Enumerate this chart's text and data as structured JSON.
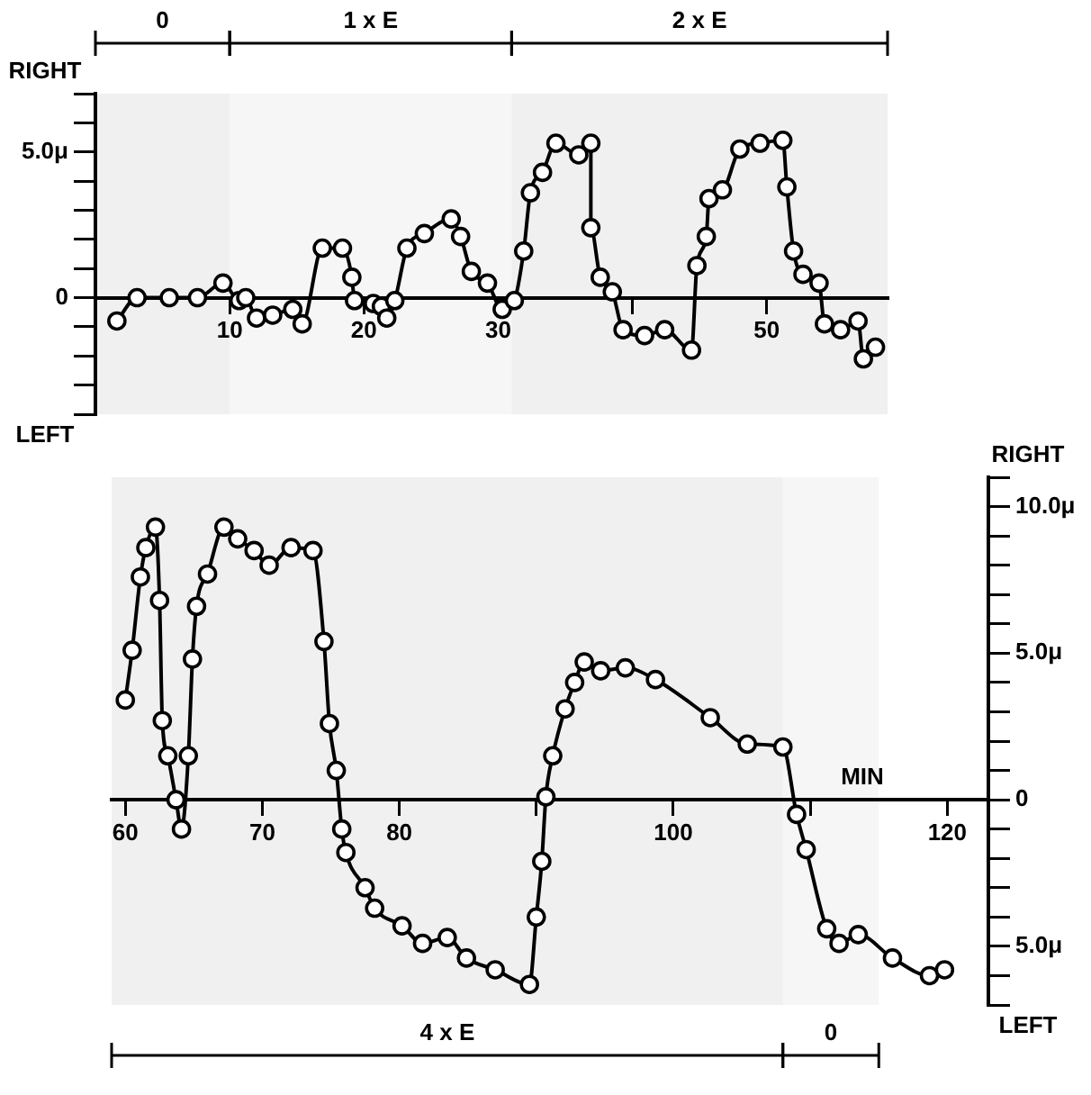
{
  "chart_data": [
    {
      "type": "line",
      "marker": "circle",
      "line_style": "solid",
      "legend": false,
      "annotations": [
        "RIGHT",
        "LEFT"
      ],
      "bands": [
        {
          "axis": "x",
          "from": 0,
          "to": 10,
          "label": "0"
        },
        {
          "axis": "x",
          "from": 10,
          "to": 31,
          "label": "1 x E"
        },
        {
          "axis": "x",
          "from": 31,
          "to": 59,
          "label": "2 x E"
        }
      ],
      "xlim": [
        0,
        59
      ],
      "xticks": [
        10,
        20,
        30,
        {
          "value": 40,
          "label": null
        },
        50
      ],
      "ylim": [
        -4,
        7
      ],
      "yticks": [
        {
          "value": -4,
          "label": null
        },
        {
          "value": -3,
          "label": null
        },
        {
          "value": -2,
          "label": null
        },
        {
          "value": -1,
          "label": null
        },
        0,
        {
          "value": 1,
          "label": null
        },
        {
          "value": 2,
          "label": null
        },
        {
          "value": 3,
          "label": null
        },
        {
          "value": 4,
          "label": null
        },
        {
          "value": 5,
          "label": "5.0μ"
        },
        {
          "value": 6,
          "label": null
        },
        {
          "value": 7,
          "label": null
        }
      ],
      "series": [
        {
          "color": "#000000",
          "x": [
            1.6,
            3.1,
            5.5,
            7.6,
            9.5,
            10.7,
            11.2,
            12,
            13.2,
            14.7,
            15.4,
            16.9,
            18.4,
            19.1,
            19.3,
            20.7,
            21.3,
            21.7,
            22.3,
            23.2,
            24.5,
            26.5,
            27.2,
            28,
            29.2,
            30.3,
            31.2,
            31.9,
            32.4,
            33.3,
            34.3,
            36,
            36.9,
            36.9,
            37.6,
            38.5,
            39.3,
            40.9,
            42.4,
            44.4,
            44.8,
            45.5,
            45.7,
            46.7,
            48,
            49.5,
            51.2,
            51.5,
            52,
            52.7,
            53.9,
            54.3,
            55.5,
            56.8,
            57.2,
            58.1
          ],
          "values": [
            -0.8,
            0,
            0,
            0,
            0.5,
            -0.1,
            0,
            -0.7,
            -0.6,
            -0.4,
            -0.9,
            1.7,
            1.7,
            0.7,
            -0.1,
            -0.2,
            -0.3,
            -0.7,
            -0.1,
            1.7,
            2.2,
            2.7,
            2.1,
            0.9,
            0.5,
            -0.4,
            -0.1,
            1.6,
            3.6,
            4.3,
            5.3,
            4.9,
            5.3,
            2.4,
            0.7,
            0.2,
            -1.1,
            -1.3,
            -1.1,
            -1.8,
            1.1,
            2.1,
            3.4,
            3.7,
            5.1,
            5.3,
            5.4,
            3.8,
            1.6,
            0.8,
            0.5,
            -0.9,
            -1.1,
            -0.8,
            -2.1,
            -1.7
          ]
        }
      ]
    },
    {
      "type": "line",
      "marker": "circle",
      "line_style": "solid",
      "legend": false,
      "annotations": [
        "RIGHT",
        "LEFT",
        "MIN"
      ],
      "bands": [
        {
          "axis": "x",
          "from": 59,
          "to": 108,
          "label": "4 x E"
        },
        {
          "axis": "x",
          "from": 108,
          "to": 115,
          "label": "0"
        }
      ],
      "xlim": [
        59,
        123
      ],
      "xticks": [
        60,
        70,
        80,
        {
          "value": 90,
          "label": null
        },
        100,
        {
          "value": 110,
          "label": null
        },
        120
      ],
      "ylim": [
        -7,
        11
      ],
      "yticks": [
        {
          "value": -7,
          "label": null
        },
        {
          "value": -6,
          "label": null
        },
        {
          "value": -5,
          "label": "5.0μ"
        },
        {
          "value": -4,
          "label": null
        },
        {
          "value": -3,
          "label": null
        },
        {
          "value": -2,
          "label": null
        },
        {
          "value": -1,
          "label": null
        },
        0,
        {
          "value": 1,
          "label": null
        },
        {
          "value": 2,
          "label": null
        },
        {
          "value": 3,
          "label": null
        },
        {
          "value": 4,
          "label": null
        },
        {
          "value": 5,
          "label": "5.0μ"
        },
        {
          "value": 6,
          "label": null
        },
        {
          "value": 7,
          "label": null
        },
        {
          "value": 8,
          "label": null
        },
        {
          "value": 9,
          "label": null
        },
        {
          "value": 10,
          "label": "10.0μ"
        },
        {
          "value": 11,
          "label": null
        }
      ],
      "series": [
        {
          "color": "#000000",
          "x": [
            60.0,
            60.5,
            61.1,
            61.5,
            62.2,
            62.5,
            62.7,
            63.1,
            63.7,
            64.1,
            64.6,
            64.9,
            65.2,
            66.0,
            67.2,
            68.2,
            69.4,
            70.5,
            72.1,
            73.7,
            74.5,
            74.9,
            75.4,
            75.8,
            76.1,
            77.5,
            78.2,
            80.2,
            81.7,
            83.5,
            84.9,
            87.0,
            89.5,
            90.0,
            90.4,
            90.7,
            91.2,
            92.1,
            92.8,
            93.5,
            94.7,
            96.5,
            98.7,
            102.7,
            105.4,
            108.0,
            109.0,
            109.7,
            111.2,
            112.1,
            113.5,
            116.0,
            118.7,
            119.8
          ],
          "values": [
            3.4,
            5.1,
            7.6,
            8.6,
            9.3,
            6.8,
            2.7,
            1.5,
            0,
            -1.0,
            1.5,
            4.8,
            6.6,
            7.7,
            9.3,
            8.9,
            8.5,
            8.0,
            8.6,
            8.5,
            5.4,
            2.6,
            1.0,
            -1.0,
            -1.8,
            -3.0,
            -3.7,
            -4.3,
            -4.9,
            -4.7,
            -5.4,
            -5.8,
            -6.3,
            -4.0,
            -2.1,
            0.1,
            1.5,
            3.1,
            4.0,
            4.7,
            4.4,
            4.5,
            4.1,
            2.8,
            1.9,
            1.8,
            -0.5,
            -1.7,
            -4.4,
            -4.9,
            -4.6,
            -5.4,
            -6.0,
            -5.8
          ]
        }
      ]
    }
  ]
}
